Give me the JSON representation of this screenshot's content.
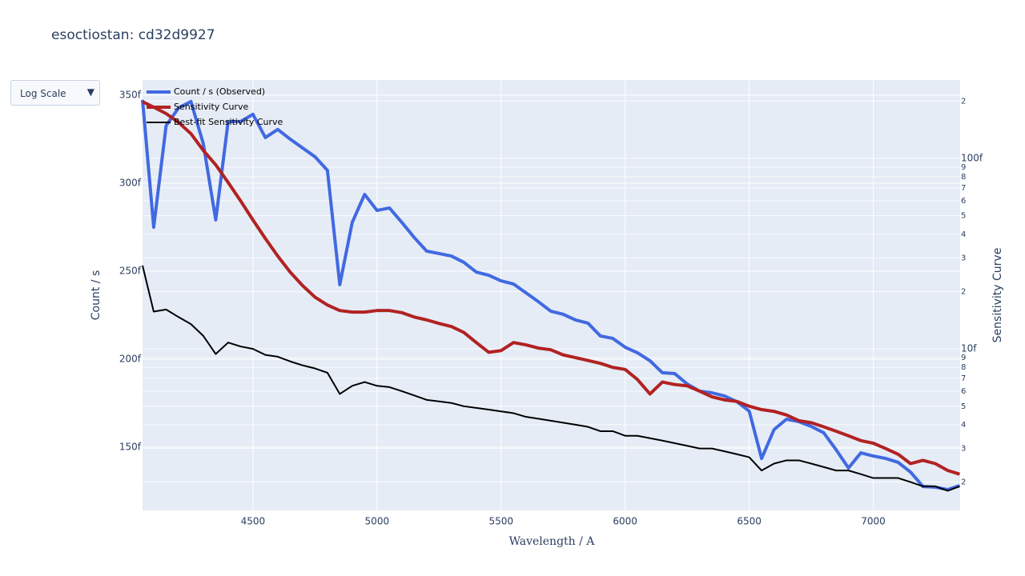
{
  "chart_data": {
    "type": "line",
    "title": "esoctiostan: cd32d9927",
    "x_label": "Wavelength / A",
    "y_label": "Count / s",
    "y2_label": "Sensitivity Curve",
    "x": [
      4055,
      4100,
      4150,
      4200,
      4250,
      4300,
      4350,
      4400,
      4450,
      4500,
      4550,
      4600,
      4650,
      4700,
      4750,
      4800,
      4850,
      4900,
      4950,
      5000,
      5050,
      5100,
      5150,
      5200,
      5250,
      5300,
      5350,
      5400,
      5450,
      5500,
      5550,
      5600,
      5650,
      5700,
      5750,
      5800,
      5850,
      5900,
      5950,
      6000,
      6050,
      6100,
      6150,
      6200,
      6250,
      6300,
      6350,
      6400,
      6450,
      6500,
      6550,
      6600,
      6650,
      6700,
      6750,
      6800,
      6850,
      6900,
      6950,
      7000,
      7050,
      7100,
      7150,
      7200,
      7250,
      7300,
      7348
    ],
    "series": [
      {
        "name": "Count / s (Observed)",
        "color": "#4169e1",
        "width": 4,
        "axis": "y",
        "values": [
          347.3,
          275,
          332.7,
          342.7,
          346.4,
          322.3,
          279.1,
          335,
          335,
          339.1,
          325.9,
          330.5,
          325,
          320,
          315,
          307.3,
          242.3,
          277.7,
          293.6,
          284.5,
          285.9,
          277.7,
          269.1,
          261.4,
          260,
          258.6,
          255,
          249.5,
          247.7,
          244.5,
          242.7,
          237.7,
          232.7,
          227.3,
          225.5,
          222.3,
          220.5,
          213.2,
          211.8,
          206.8,
          203.6,
          199.1,
          192.3,
          191.8,
          185.9,
          181.8,
          180.9,
          179.1,
          175.9,
          170.5,
          143.6,
          160,
          165.9,
          164.5,
          161.8,
          158.2,
          148.6,
          138.2,
          146.8,
          145,
          143.6,
          141.4,
          135.9,
          127.7,
          127.3,
          125.9,
          128.2
        ]
      },
      {
        "name": "Sensitivity Curve",
        "color": "#b22222",
        "width": 4,
        "axis": "y2",
        "values": [
          198.6,
          185.7,
          171.9,
          154.5,
          134.9,
          110.1,
          92.5,
          74.8,
          59.9,
          47.5,
          38,
          30.7,
          25.3,
          21.5,
          18.7,
          17,
          15.9,
          15.6,
          15.6,
          15.9,
          15.9,
          15.5,
          14.7,
          14.2,
          13.6,
          13.1,
          12.2,
          10.8,
          9.6,
          9.8,
          10.8,
          10.5,
          10.1,
          9.9,
          9.3,
          9,
          8.7,
          8.4,
          8,
          7.8,
          6.9,
          5.8,
          6.7,
          6.5,
          6.4,
          6,
          5.6,
          5.4,
          5.3,
          5,
          4.8,
          4.7,
          4.5,
          4.2,
          4.1,
          3.9,
          3.7,
          3.5,
          3.3,
          3.2,
          3,
          2.8,
          2.5,
          2.6,
          2.5,
          2.3,
          2.2
        ]
      },
      {
        "name": "Best-fit Sensitivity Curve",
        "color": "#000000",
        "width": 2,
        "axis": "y2",
        "values": [
          27.4,
          15.7,
          16.1,
          14.7,
          13.5,
          11.7,
          9.4,
          10.8,
          10.3,
          10,
          9.3,
          9.1,
          8.6,
          8.2,
          7.9,
          7.5,
          5.8,
          6.4,
          6.7,
          6.4,
          6.3,
          6,
          5.7,
          5.4,
          5.3,
          5.2,
          5,
          4.9,
          4.8,
          4.7,
          4.6,
          4.4,
          4.3,
          4.2,
          4.1,
          4,
          3.9,
          3.7,
          3.7,
          3.5,
          3.5,
          3.4,
          3.3,
          3.2,
          3.1,
          3,
          3,
          2.9,
          2.8,
          2.7,
          2.3,
          2.5,
          2.6,
          2.6,
          2.5,
          2.4,
          2.3,
          2.3,
          2.2,
          2.1,
          2.1,
          2.1,
          2,
          1.9,
          1.9,
          1.8,
          1.9
        ]
      }
    ],
    "xlim": [
      4055,
      7350
    ],
    "xticks": [
      4500,
      5000,
      5500,
      6000,
      6500,
      7000
    ],
    "ylim": [
      114.1,
      358.6
    ],
    "yticks": [
      {
        "value": 150,
        "label": "150f"
      },
      {
        "value": 200,
        "label": "200f"
      },
      {
        "value": 250,
        "label": "250f"
      },
      {
        "value": 300,
        "label": "300f"
      },
      {
        "value": 350,
        "label": "350f"
      }
    ],
    "y2lim": [
      1.42,
      258
    ],
    "y2log": true,
    "y2ticks": [
      2,
      3,
      4,
      5,
      6,
      7,
      8,
      9,
      {
        "value": 10,
        "label": "10f"
      },
      {
        "value": 20,
        "label": "2"
      },
      {
        "value": 30,
        "label": "3"
      },
      {
        "value": 40,
        "label": "4"
      },
      {
        "value": 50,
        "label": "5"
      },
      {
        "value": 60,
        "label": "6"
      },
      {
        "value": 70,
        "label": "7"
      },
      {
        "value": 80,
        "label": "8"
      },
      {
        "value": 90,
        "label": "9"
      },
      {
        "value": 100,
        "label": "100f"
      },
      {
        "value": 200,
        "label": "2"
      }
    ],
    "grid": true,
    "legend": "top-left"
  },
  "controls": {
    "dropdown": "Log Scale"
  }
}
